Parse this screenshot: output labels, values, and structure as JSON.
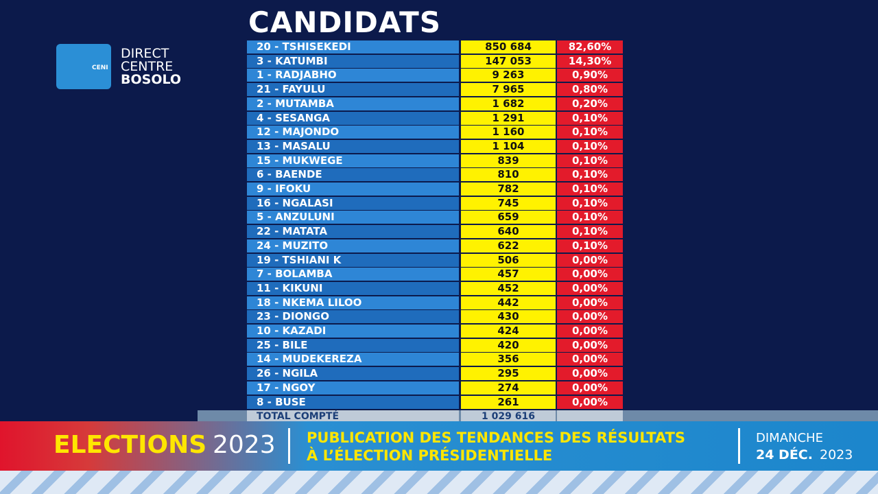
{
  "logo": {
    "box": "CENI",
    "line1": "DIRECT",
    "line2": "CENTRE",
    "line3": "BOSOLO"
  },
  "title": "CANDIDATS",
  "table": {
    "rows": [
      [
        "20 - TSHISEKEDI",
        "850 684",
        "82,60%"
      ],
      [
        "3 - KATUMBI",
        "147 053",
        "14,30%"
      ],
      [
        "1 - RADJABHO",
        "9 263",
        "0,90%"
      ],
      [
        "21 - FAYULU",
        "7 965",
        "0,80%"
      ],
      [
        "2 - MUTAMBA",
        "1 682",
        "0,20%"
      ],
      [
        "4 - SESANGA",
        "1 291",
        "0,10%"
      ],
      [
        "12 - MAJONDO",
        "1 160",
        "0,10%"
      ],
      [
        "13 - MASALU",
        "1 104",
        "0,10%"
      ],
      [
        "15 - MUKWEGE",
        "839",
        "0,10%"
      ],
      [
        "6 - BAENDE",
        "810",
        "0,10%"
      ],
      [
        "9 - IFOKU",
        "782",
        "0,10%"
      ],
      [
        "16 - NGALASI",
        "745",
        "0,10%"
      ],
      [
        "5 - ANZULUNI",
        "659",
        "0,10%"
      ],
      [
        "22 - MATATA",
        "640",
        "0,10%"
      ],
      [
        "24 - MUZITO",
        "622",
        "0,10%"
      ],
      [
        "19 - TSHIANI K",
        "506",
        "0,00%"
      ],
      [
        "7 - BOLAMBA",
        "457",
        "0,00%"
      ],
      [
        "11 - KIKUNI",
        "452",
        "0,00%"
      ],
      [
        "18 - NKEMA LILOO",
        "442",
        "0,00%"
      ],
      [
        "23 - DIONGO",
        "430",
        "0,00%"
      ],
      [
        "10 - KAZADI",
        "424",
        "0,00%"
      ],
      [
        "25 - BILE",
        "420",
        "0,00%"
      ],
      [
        "14 - MUDEKEREZA",
        "356",
        "0,00%"
      ],
      [
        "26 - NGILA",
        "295",
        "0,00%"
      ],
      [
        "17 - NGOY",
        "274",
        "0,00%"
      ],
      [
        "8 - BUSE",
        "261",
        "0,00%"
      ]
    ],
    "total": {
      "label": "TOTAL COMPTÉ",
      "value": "1 029 616"
    }
  },
  "banner": {
    "elections": "ELECTIONS",
    "year": "2023",
    "headline1": "PUBLICATION DES TENDANCES DES RÉSULTATS",
    "headline2": "À L’ÉLECTION PRÉSIDENTIELLE",
    "day": "DIMANCHE",
    "date": "24 DÉC.",
    "date_year": "2023"
  }
}
